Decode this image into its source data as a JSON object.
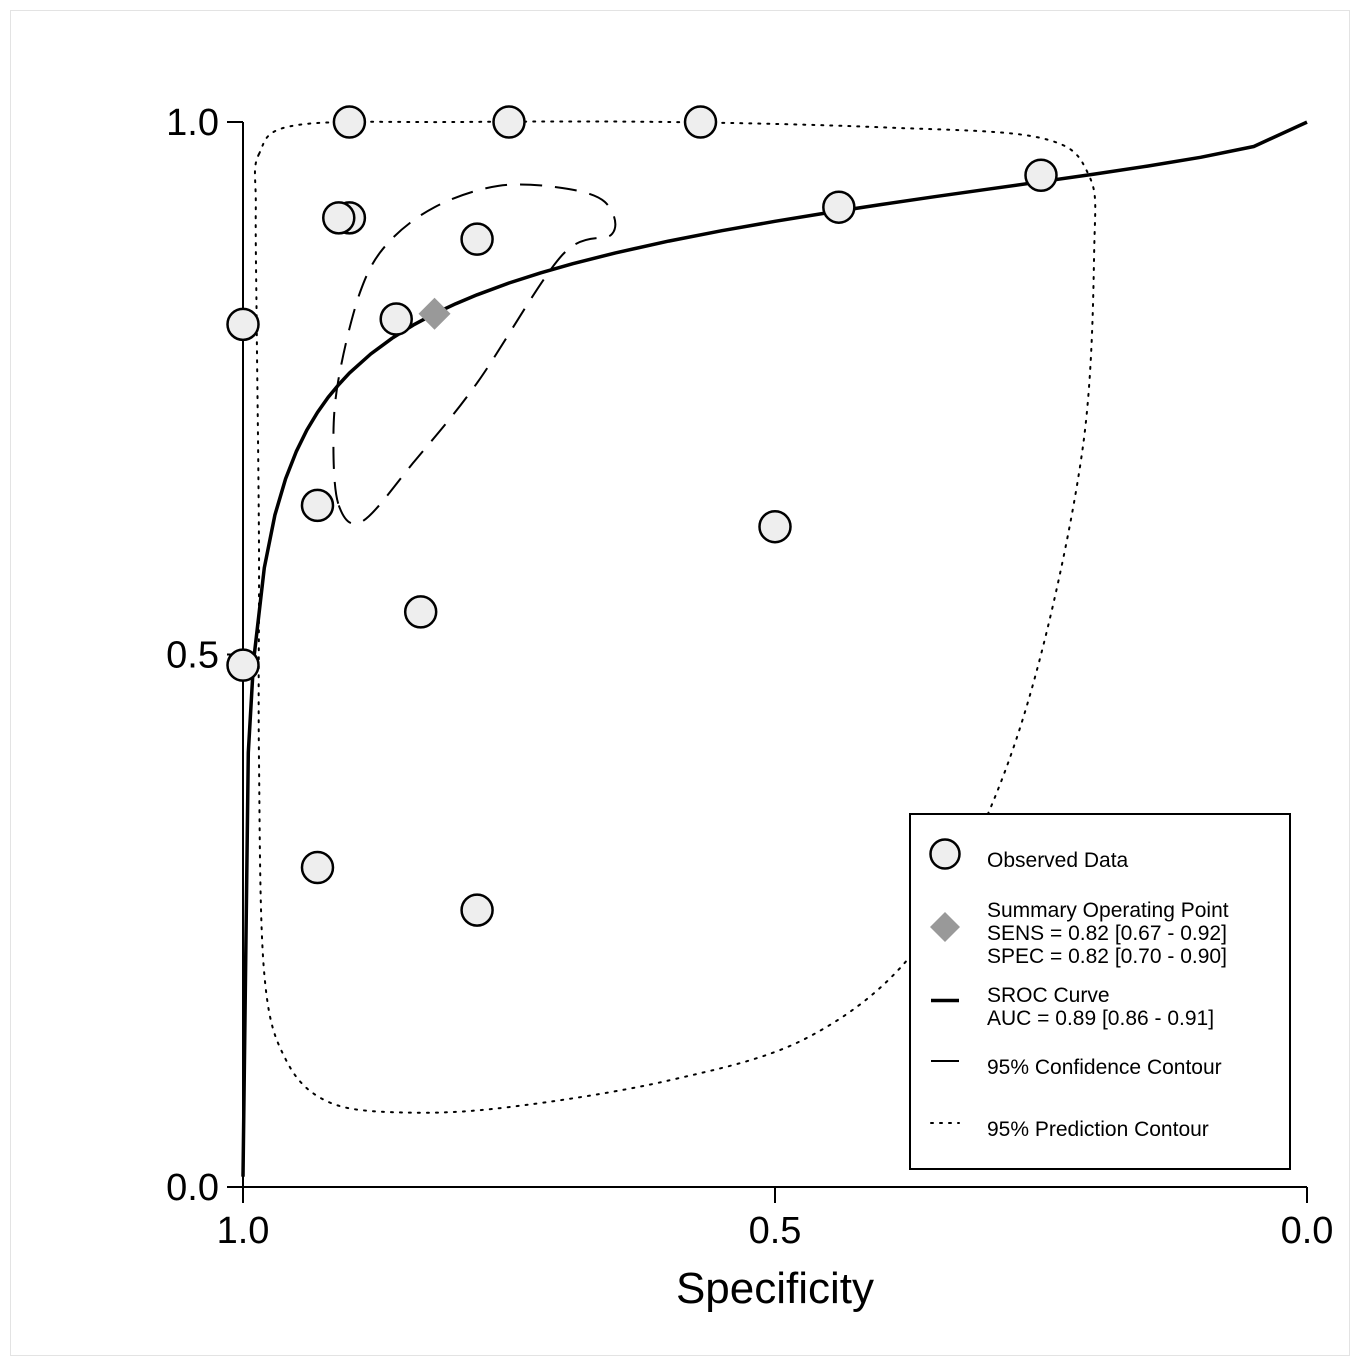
{
  "chart_data": {
    "type": "scatter",
    "title": "",
    "xlabel": "Specificity",
    "ylabel": "",
    "x_reversed": true,
    "xlim": [
      1.0,
      0.0
    ],
    "ylim": [
      0.0,
      1.0
    ],
    "x_ticks": [
      "1.0",
      "0.5",
      "0.0"
    ],
    "y_ticks": [
      "1.0",
      "0.5",
      "0.0"
    ],
    "grid": false,
    "legend_position": "bottom-right",
    "series": [
      {
        "name": "Observed Data",
        "kind": "points",
        "points": [
          {
            "x": 0.9,
            "y": 1.0
          },
          {
            "x": 0.75,
            "y": 1.0
          },
          {
            "x": 0.57,
            "y": 1.0
          },
          {
            "x": 0.25,
            "y": 0.95
          },
          {
            "x": 0.44,
            "y": 0.92
          },
          {
            "x": 0.9,
            "y": 0.91
          },
          {
            "x": 0.91,
            "y": 0.91
          },
          {
            "x": 0.78,
            "y": 0.89
          },
          {
            "x": 1.0,
            "y": 0.81
          },
          {
            "x": 0.856,
            "y": 0.815
          },
          {
            "x": 0.93,
            "y": 0.64
          },
          {
            "x": 0.5,
            "y": 0.62
          },
          {
            "x": 0.833,
            "y": 0.54
          },
          {
            "x": 1.0,
            "y": 0.49
          },
          {
            "x": 0.93,
            "y": 0.3
          },
          {
            "x": 0.78,
            "y": 0.26
          }
        ]
      },
      {
        "name": "Summary Operating Point",
        "kind": "summary",
        "points": [
          {
            "x": 0.82,
            "y": 0.82
          }
        ]
      },
      {
        "name": "SROC Curve",
        "kind": "curve",
        "sample_x": [
          1.0,
          0.995,
          0.99,
          0.98,
          0.97,
          0.96,
          0.95,
          0.94,
          0.93,
          0.92,
          0.91,
          0.9,
          0.88,
          0.86,
          0.84,
          0.82,
          0.8,
          0.78,
          0.75,
          0.72,
          0.69,
          0.65,
          0.6,
          0.55,
          0.5,
          0.45,
          0.4,
          0.35,
          0.3,
          0.25,
          0.2,
          0.15,
          0.1,
          0.05,
          0.0
        ]
      },
      {
        "name": "95% Confidence Contour",
        "kind": "contour",
        "points": [
          {
            "x": 0.91,
            "y": 0.64
          },
          {
            "x": 0.888,
            "y": 0.625
          },
          {
            "x": 0.84,
            "y": 0.68
          },
          {
            "x": 0.78,
            "y": 0.755
          },
          {
            "x": 0.7,
            "y": 0.875
          },
          {
            "x": 0.653,
            "y": 0.895
          },
          {
            "x": 0.66,
            "y": 0.925
          },
          {
            "x": 0.7,
            "y": 0.938
          },
          {
            "x": 0.76,
            "y": 0.94
          },
          {
            "x": 0.82,
            "y": 0.92
          },
          {
            "x": 0.865,
            "y": 0.885
          },
          {
            "x": 0.89,
            "y": 0.84
          },
          {
            "x": 0.91,
            "y": 0.76
          },
          {
            "x": 0.915,
            "y": 0.7
          }
        ]
      },
      {
        "name": "95% Prediction Contour",
        "kind": "contour",
        "points": [
          {
            "x": 0.985,
            "y": 0.97
          },
          {
            "x": 0.95,
            "y": 0.997
          },
          {
            "x": 0.8,
            "y": 1.0
          },
          {
            "x": 0.6,
            "y": 1.0
          },
          {
            "x": 0.4,
            "y": 0.995
          },
          {
            "x": 0.25,
            "y": 0.985
          },
          {
            "x": 0.205,
            "y": 0.95
          },
          {
            "x": 0.2,
            "y": 0.88
          },
          {
            "x": 0.21,
            "y": 0.7
          },
          {
            "x": 0.25,
            "y": 0.5
          },
          {
            "x": 0.3,
            "y": 0.35
          },
          {
            "x": 0.37,
            "y": 0.22
          },
          {
            "x": 0.47,
            "y": 0.14
          },
          {
            "x": 0.6,
            "y": 0.1
          },
          {
            "x": 0.75,
            "y": 0.075
          },
          {
            "x": 0.85,
            "y": 0.07
          },
          {
            "x": 0.92,
            "y": 0.08
          },
          {
            "x": 0.96,
            "y": 0.12
          },
          {
            "x": 0.98,
            "y": 0.2
          },
          {
            "x": 0.985,
            "y": 0.4
          },
          {
            "x": 0.985,
            "y": 0.6
          },
          {
            "x": 0.987,
            "y": 0.8
          },
          {
            "x": 0.988,
            "y": 0.92
          }
        ]
      }
    ],
    "summary": {
      "sens": "0.82",
      "sens_ci": "[0.67 - 0.92]",
      "spec": "0.82",
      "spec_ci": "[0.70 - 0.90]",
      "auc": "0.89",
      "auc_ci": "[0.86 - 0.91]"
    },
    "legend": [
      {
        "marker": "circle",
        "lines": [
          "Observed Data"
        ]
      },
      {
        "marker": "diamond",
        "lines": [
          "Summary Operating Point",
          "SENS = 0.82 [0.67 - 0.92]",
          "SPEC = 0.82 [0.70 - 0.90]"
        ]
      },
      {
        "marker": "solid-line",
        "lines": [
          "SROC Curve",
          "AUC = 0.89 [0.86 - 0.91]"
        ]
      },
      {
        "marker": "dashed-line",
        "lines": [
          "95% Confidence Contour"
        ]
      },
      {
        "marker": "dotted-line",
        "lines": [
          "95% Prediction Contour"
        ]
      }
    ],
    "colors": {
      "observed_fill": "#eeeeee",
      "observed_stroke": "#000000",
      "summary_fill": "#999999",
      "curve": "#000000",
      "confidence": "#000000",
      "prediction": "#000000"
    }
  }
}
